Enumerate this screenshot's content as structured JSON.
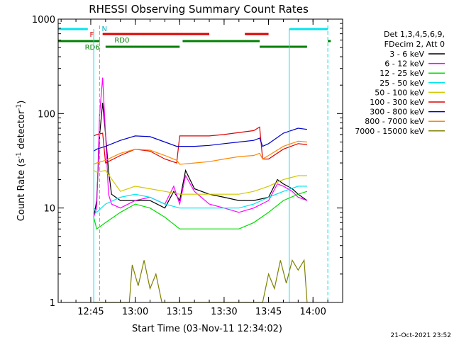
{
  "chart_data": {
    "type": "line",
    "title": "RHESSI Observing Summary Count Rates",
    "xlabel": "Start Time (03-Nov-11 12:34:02)",
    "ylabel_main": "Count Rate (s",
    "ylabel_sup1": "-1",
    "ylabel_mid": " detector",
    "ylabel_sup2": "-1",
    "ylabel_end": ")",
    "y_scale": "log",
    "ylim": [
      1,
      1000
    ],
    "xlim": [
      "12:34",
      "14:10"
    ],
    "x_ticks": [
      "12:45",
      "13:00",
      "13:15",
      "13:30",
      "13:45",
      "14:00"
    ],
    "y_ticks": [
      "1",
      "10",
      "100",
      "1000"
    ],
    "grid": false,
    "legend_position": "right",
    "legend_header": [
      "Det 1,3,4,5,6,9,",
      "FDecim 2, Att 0"
    ],
    "timestamp": "21-Oct-2021 23:52",
    "markers": {
      "flag_F": "F",
      "flag_N": "N",
      "flag_RD0": "RD0",
      "flag_RD6": "RD6"
    },
    "series": [
      {
        "name": "3 - 6 keV",
        "color": "#000000",
        "points": [
          [
            "12:46",
            8
          ],
          [
            "12:47",
            12
          ],
          [
            "12:48",
            60
          ],
          [
            "12:49",
            130
          ],
          [
            "12:50",
            60
          ],
          [
            "12:51",
            25
          ],
          [
            "12:52",
            14
          ],
          [
            "12:55",
            12
          ],
          [
            "13:00",
            12
          ],
          [
            "13:05",
            12
          ],
          [
            "13:10",
            10
          ],
          [
            "13:13",
            15
          ],
          [
            "13:15",
            12
          ],
          [
            "13:17",
            25
          ],
          [
            "13:20",
            16
          ],
          [
            "13:25",
            14
          ],
          [
            "13:30",
            13
          ],
          [
            "13:35",
            12
          ],
          [
            "13:40",
            12
          ],
          [
            "13:45",
            13
          ],
          [
            "13:48",
            20
          ],
          [
            "13:50",
            18
          ],
          [
            "13:53",
            16
          ],
          [
            "13:55",
            14
          ],
          [
            "13:58",
            12
          ]
        ]
      },
      {
        "name": "6 - 12 keV",
        "color": "#ff00ff",
        "points": [
          [
            "12:46",
            8
          ],
          [
            "12:47",
            10
          ],
          [
            "12:48",
            100
          ],
          [
            "12:49",
            240
          ],
          [
            "12:50",
            60
          ],
          [
            "12:51",
            14
          ],
          [
            "12:52",
            11
          ],
          [
            "12:55",
            10
          ],
          [
            "13:00",
            12
          ],
          [
            "13:05",
            13
          ],
          [
            "13:10",
            11
          ],
          [
            "13:13",
            17
          ],
          [
            "13:15",
            11
          ],
          [
            "13:17",
            22
          ],
          [
            "13:20",
            15
          ],
          [
            "13:25",
            11
          ],
          [
            "13:30",
            10
          ],
          [
            "13:35",
            9
          ],
          [
            "13:40",
            10
          ],
          [
            "13:45",
            12
          ],
          [
            "13:48",
            18
          ],
          [
            "13:50",
            17
          ],
          [
            "13:53",
            15
          ],
          [
            "13:55",
            13
          ],
          [
            "13:58",
            12
          ]
        ]
      },
      {
        "name": "12 - 25 keV",
        "color": "#00dd00",
        "points": [
          [
            "12:46",
            8
          ],
          [
            "12:47",
            6
          ],
          [
            "12:50",
            7
          ],
          [
            "12:55",
            9
          ],
          [
            "13:00",
            11
          ],
          [
            "13:05",
            10
          ],
          [
            "13:10",
            8
          ],
          [
            "13:15",
            6
          ],
          [
            "13:20",
            6
          ],
          [
            "13:25",
            6
          ],
          [
            "13:30",
            6
          ],
          [
            "13:35",
            6
          ],
          [
            "13:40",
            7
          ],
          [
            "13:45",
            9
          ],
          [
            "13:50",
            12
          ],
          [
            "13:55",
            14
          ],
          [
            "13:58",
            15
          ]
        ]
      },
      {
        "name": "25 - 50 keV",
        "color": "#00e5ee",
        "points": [
          [
            "12:46",
            10
          ],
          [
            "12:47",
            9
          ],
          [
            "12:50",
            11
          ],
          [
            "12:55",
            13
          ],
          [
            "13:00",
            14
          ],
          [
            "13:05",
            13
          ],
          [
            "13:10",
            11
          ],
          [
            "13:15",
            10
          ],
          [
            "13:20",
            10
          ],
          [
            "13:25",
            10
          ],
          [
            "13:30",
            10
          ],
          [
            "13:35",
            10
          ],
          [
            "13:40",
            11
          ],
          [
            "13:45",
            13
          ],
          [
            "13:50",
            15
          ],
          [
            "13:55",
            17
          ],
          [
            "13:58",
            17
          ]
        ]
      },
      {
        "name": "50 - 100 keV",
        "color": "#d4c800",
        "points": [
          [
            "12:46",
            25
          ],
          [
            "12:47",
            24
          ],
          [
            "12:50",
            25
          ],
          [
            "12:55",
            15
          ],
          [
            "13:00",
            17
          ],
          [
            "13:05",
            16
          ],
          [
            "13:10",
            15
          ],
          [
            "13:15",
            14
          ],
          [
            "13:20",
            14
          ],
          [
            "13:25",
            14
          ],
          [
            "13:30",
            14
          ],
          [
            "13:35",
            14
          ],
          [
            "13:40",
            15
          ],
          [
            "13:45",
            17
          ],
          [
            "13:50",
            20
          ],
          [
            "13:55",
            22
          ],
          [
            "13:58",
            22
          ]
        ]
      },
      {
        "name": "100 - 300 keV",
        "color": "#dd0000",
        "points": [
          [
            "12:46",
            58
          ],
          [
            "12:47",
            60
          ],
          [
            "12:49",
            62
          ],
          [
            "12:50",
            30
          ],
          [
            "12:55",
            36
          ],
          [
            "13:00",
            42
          ],
          [
            "13:05",
            40
          ],
          [
            "13:10",
            33
          ],
          [
            "13:14",
            30
          ],
          [
            "13:15",
            58
          ],
          [
            "13:20",
            58
          ],
          [
            "13:25",
            58
          ],
          [
            "13:30",
            60
          ],
          [
            "13:35",
            63
          ],
          [
            "13:40",
            66
          ],
          [
            "13:42",
            72
          ],
          [
            "13:43",
            33
          ],
          [
            "13:45",
            33
          ],
          [
            "13:50",
            42
          ],
          [
            "13:55",
            48
          ],
          [
            "13:58",
            47
          ]
        ]
      },
      {
        "name": "300 - 800 keV",
        "color": "#0000cc",
        "points": [
          [
            "12:46",
            40
          ],
          [
            "12:47",
            42
          ],
          [
            "12:50",
            45
          ],
          [
            "12:55",
            52
          ],
          [
            "13:00",
            58
          ],
          [
            "13:05",
            57
          ],
          [
            "13:10",
            50
          ],
          [
            "13:14",
            45
          ],
          [
            "13:15",
            45
          ],
          [
            "13:20",
            45
          ],
          [
            "13:25",
            46
          ],
          [
            "13:30",
            48
          ],
          [
            "13:35",
            50
          ],
          [
            "13:40",
            52
          ],
          [
            "13:42",
            55
          ],
          [
            "13:43",
            45
          ],
          [
            "13:45",
            48
          ],
          [
            "13:50",
            62
          ],
          [
            "13:55",
            70
          ],
          [
            "13:58",
            68
          ]
        ]
      },
      {
        "name": "800 - 7000 keV",
        "color": "#ff8800",
        "points": [
          [
            "12:46",
            29
          ],
          [
            "12:47",
            30
          ],
          [
            "12:50",
            32
          ],
          [
            "12:55",
            38
          ],
          [
            "13:00",
            42
          ],
          [
            "13:05",
            41
          ],
          [
            "13:10",
            36
          ],
          [
            "13:14",
            32
          ],
          [
            "13:15",
            29
          ],
          [
            "13:20",
            30
          ],
          [
            "13:25",
            31
          ],
          [
            "13:30",
            33
          ],
          [
            "13:35",
            35
          ],
          [
            "13:40",
            36
          ],
          [
            "13:42",
            38
          ],
          [
            "13:43",
            33
          ],
          [
            "13:45",
            36
          ],
          [
            "13:50",
            45
          ],
          [
            "13:55",
            51
          ],
          [
            "13:58",
            50
          ]
        ]
      },
      {
        "name": "7000 - 15000 keV",
        "color": "#808000",
        "points": [
          [
            "12:46",
            1
          ],
          [
            "12:58",
            1
          ],
          [
            "12:59",
            2.5
          ],
          [
            "13:01",
            1.5
          ],
          [
            "13:03",
            2.8
          ],
          [
            "13:05",
            1.4
          ],
          [
            "13:07",
            2.0
          ],
          [
            "13:09",
            1
          ],
          [
            "13:43",
            1
          ],
          [
            "13:45",
            2.0
          ],
          [
            "13:47",
            1.4
          ],
          [
            "13:49",
            2.8
          ],
          [
            "13:51",
            1.6
          ],
          [
            "13:53",
            2.8
          ],
          [
            "13:55",
            2.2
          ],
          [
            "13:57",
            2.8
          ],
          [
            "13:58",
            1
          ]
        ]
      }
    ]
  }
}
